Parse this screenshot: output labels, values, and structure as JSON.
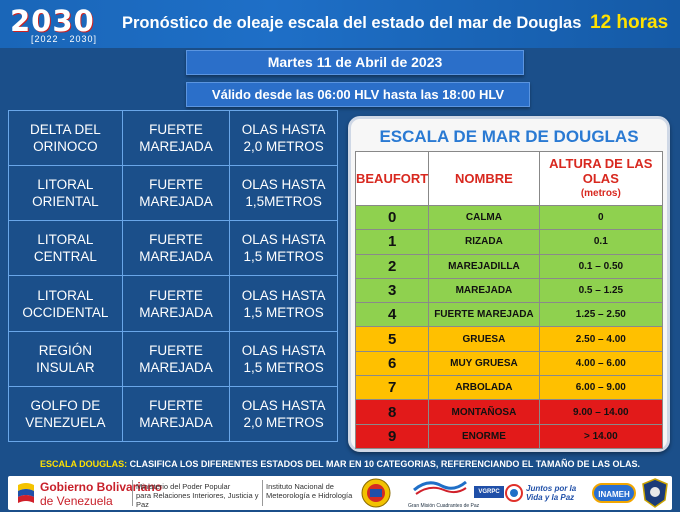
{
  "header": {
    "logo_digits": "2030",
    "logo_years": "[2022 - 2030]",
    "title": "Pronóstico de oleaje escala del estado del mar de Douglas",
    "hours": "12 horas"
  },
  "date_bar": "Martes 11 de Abril de 2023",
  "valid_bar": "Válido desde las 06:00 HLV hasta las 18:00 HLV",
  "forecast": [
    {
      "zone": [
        "DELTA DEL",
        "ORINOCO"
      ],
      "state": [
        "FUERTE",
        "MAREJADA"
      ],
      "waves": [
        "OLAS HASTA",
        "2,0 METROS"
      ]
    },
    {
      "zone": [
        "LITORAL",
        "ORIENTAL"
      ],
      "state": [
        "FUERTE",
        "MAREJADA"
      ],
      "waves": [
        "OLAS HASTA",
        "1,5METROS"
      ]
    },
    {
      "zone": [
        "LITORAL",
        "CENTRAL"
      ],
      "state": [
        "FUERTE",
        "MAREJADA"
      ],
      "waves": [
        "OLAS HASTA",
        "1,5 METROS"
      ]
    },
    {
      "zone": [
        "LITORAL",
        "OCCIDENTAL"
      ],
      "state": [
        "FUERTE",
        "MAREJADA"
      ],
      "waves": [
        "OLAS HASTA",
        "1,5 METROS"
      ]
    },
    {
      "zone": [
        "REGIÓN",
        "INSULAR"
      ],
      "state": [
        "FUERTE",
        "MAREJADA"
      ],
      "waves": [
        "OLAS HASTA",
        "1,5 METROS"
      ]
    },
    {
      "zone": [
        "GOLFO DE",
        "VENEZUELA"
      ],
      "state": [
        "FUERTE",
        "MAREJADA"
      ],
      "waves": [
        "OLAS HASTA",
        "2,0 METROS"
      ]
    }
  ],
  "douglas": {
    "title": "ESCALA DE MAR DE DOUGLAS",
    "headers": {
      "beaufort": "BEAUFORT",
      "name": "NOMBRE",
      "height": "ALTURA DE LAS OLAS",
      "height_unit": "(metros)"
    },
    "rows": [
      {
        "beaufort": "0",
        "name": "CALMA",
        "height": "0",
        "color": "#8fd14f"
      },
      {
        "beaufort": "1",
        "name": "RIZADA",
        "height": "0.1",
        "color": "#8fd14f"
      },
      {
        "beaufort": "2",
        "name": "MAREJADILLA",
        "height": "0.1 – 0.50",
        "color": "#8fd14f"
      },
      {
        "beaufort": "3",
        "name": "MAREJADA",
        "height": "0.5 – 1.25",
        "color": "#8fd14f"
      },
      {
        "beaufort": "4",
        "name": "FUERTE MAREJADA",
        "height": "1.25 – 2.50",
        "color": "#8fd14f"
      },
      {
        "beaufort": "5",
        "name": "GRUESA",
        "height": "2.50 – 4.00",
        "color": "#ffc000"
      },
      {
        "beaufort": "6",
        "name": "MUY GRUESA",
        "height": "4.00 – 6.00",
        "color": "#ffc000"
      },
      {
        "beaufort": "7",
        "name": "ARBOLADA",
        "height": "6.00 – 9.00",
        "color": "#ffc000"
      },
      {
        "beaufort": "8",
        "name": "MONTAÑOSA",
        "height": "9.00 – 14.00",
        "color": "#e21a1a"
      },
      {
        "beaufort": "9",
        "name": "ENORME",
        "height": "> 14.00",
        "color": "#e21a1a"
      }
    ]
  },
  "footer": {
    "note_key": "ESCALA DOUGLAS:",
    "note_text": "CLASIFICA LOS DIFERENTES ESTADOS DEL MAR EN 10 CATEGORIAS, REFERENCIANDO EL TAMAÑO DE LAS OLAS.",
    "gv_line1_a": "Gobierno ",
    "gv_line1_b": "Bolivariano",
    "gv_line2": "de Venezuela",
    "ministry": [
      "Ministerio del Poder Popular",
      "para Relaciones Interiores, Justicia y Paz"
    ],
    "institute": [
      "Instituto Nacional de",
      "Meteorología e Hidrología"
    ],
    "gdp_label": "Gran Misión Cuadrantes de Paz",
    "vgrpc_label": "VGRPC",
    "juntos_label": "Juntos por la Vida y la Paz",
    "manea_label": "INAMEH"
  }
}
